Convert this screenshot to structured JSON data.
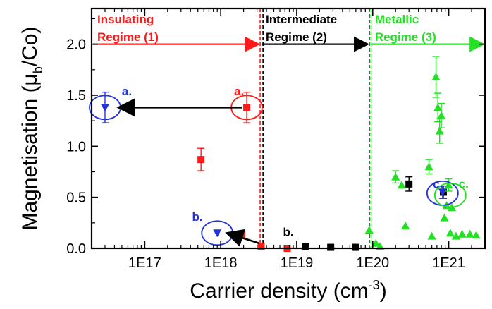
{
  "chart_data": {
    "type": "scatter",
    "title": "",
    "xlabel": "Carrier density (cm",
    "xlabel_sup": "-3",
    "xlabel_end": ")",
    "ylabel": "Magnetisation (μ",
    "ylabel_sub": "b",
    "ylabel_end": "/Co)",
    "xscale": "log",
    "xlim": [
      2e+16,
      3e+21
    ],
    "ylim": [
      0,
      2.35
    ],
    "x_ticks": [
      {
        "value": 1e+17,
        "label": "1E17"
      },
      {
        "value": 1e+18,
        "label": "1E18"
      },
      {
        "value": 1e+19,
        "label": "1E19"
      },
      {
        "value": 1e+20,
        "label": "1E20"
      },
      {
        "value": 1e+21,
        "label": "1E21"
      }
    ],
    "y_ticks": [
      {
        "value": 0.0,
        "label": "0.0"
      },
      {
        "value": 0.5,
        "label": "0.5"
      },
      {
        "value": 1.0,
        "label": "1.0"
      },
      {
        "value": 1.5,
        "label": "1.5"
      },
      {
        "value": 2.0,
        "label": "2.0"
      }
    ],
    "colors": {
      "insulating": "#ff1a1a",
      "intermediate": "#000000",
      "metallic": "#22e022",
      "annotation": "#2233dd"
    },
    "regimes": [
      {
        "label_line1": "Insulating",
        "label_line2": "Regime (1)",
        "x_start": 2e+16,
        "x_end": 3.3e+18,
        "y": 2.0,
        "color": "#ff1a1a"
      },
      {
        "label_line1": "Intermediate",
        "label_line2": "Regime (2)",
        "x_start": 3.3e+18,
        "x_end": 9e+19,
        "y": 2.0,
        "color": "#000000"
      },
      {
        "label_line1": "Metallic",
        "label_line2": "Regime (3)",
        "x_start": 9e+19,
        "x_end": 3e+21,
        "y": 2.0,
        "color": "#22e022"
      }
    ],
    "boundaries": [
      {
        "x": 3.3e+18,
        "color": "#ff1a1a"
      },
      {
        "x": 3.6e+18,
        "color": "#000000"
      },
      {
        "x": 9e+19,
        "color": "#000000"
      },
      {
        "x": 9.5e+19,
        "color": "#22e022"
      }
    ],
    "series": [
      {
        "color": "#ff1a1a",
        "marker": "square",
        "points": [
          {
            "x": 2.2e+18,
            "y": 1.38,
            "err": 0.15
          },
          {
            "x": 5.5e+17,
            "y": 0.87,
            "err": 0.11
          },
          {
            "x": 1.9e+18,
            "y": 0.13,
            "err": 0.0
          },
          {
            "x": 3.4e+18,
            "y": 0.02,
            "err": 0.0
          },
          {
            "x": 7.5e+18,
            "y": 0.0,
            "err": 0.0
          }
        ]
      },
      {
        "color": "#000000",
        "marker": "square",
        "points": [
          {
            "x": 1.3e+19,
            "y": 0.02,
            "err": 0.0
          },
          {
            "x": 2.8e+19,
            "y": 0.01,
            "err": 0.0
          },
          {
            "x": 6e+19,
            "y": 0.01,
            "err": 0.0
          },
          {
            "x": 3e+20,
            "y": 0.63,
            "err": 0.07
          },
          {
            "x": 8.5e+20,
            "y": 0.55,
            "err": 0.06
          }
        ]
      },
      {
        "color": "#22e022",
        "marker": "triangle",
        "points": [
          {
            "x": 9e+19,
            "y": 0.18,
            "err": 0.0
          },
          {
            "x": 1.1e+20,
            "y": 0.05,
            "err": 0.0
          },
          {
            "x": 1.25e+20,
            "y": 0.02,
            "err": 0.0
          },
          {
            "x": 2e+20,
            "y": 0.7,
            "err": 0.06
          },
          {
            "x": 2.4e+20,
            "y": 0.62,
            "err": 0.0
          },
          {
            "x": 2.7e+20,
            "y": 0.22,
            "err": 0.0
          },
          {
            "x": 5.5e+20,
            "y": 0.8,
            "err": 0.07
          },
          {
            "x": 6e+20,
            "y": 0.12,
            "err": 0.0
          },
          {
            "x": 6.8e+20,
            "y": 1.68,
            "err": 0.2
          },
          {
            "x": 7.2e+20,
            "y": 1.38,
            "err": 0.14
          },
          {
            "x": 7.6e+20,
            "y": 1.15,
            "err": 0.12
          },
          {
            "x": 8e+20,
            "y": 1.3,
            "err": 0.12
          },
          {
            "x": 8.8e+20,
            "y": 0.3,
            "err": 0.0
          },
          {
            "x": 9.4e+20,
            "y": 0.42,
            "err": 0.0
          },
          {
            "x": 1e+21,
            "y": 0.62,
            "err": 0.06
          },
          {
            "x": 1.05e+21,
            "y": 0.15,
            "err": 0.0
          },
          {
            "x": 1.1e+21,
            "y": 0.4,
            "err": 0.0
          },
          {
            "x": 1.25e+21,
            "y": 0.12,
            "err": 0.0
          },
          {
            "x": 1.5e+21,
            "y": 0.14,
            "err": 0.0
          },
          {
            "x": 1.9e+21,
            "y": 0.14,
            "err": 0.0
          },
          {
            "x": 2.3e+21,
            "y": 0.13,
            "err": 0.0
          }
        ]
      },
      {
        "color": "#2233dd",
        "marker": "down-triangle",
        "points": [
          {
            "x": 3e+16,
            "y": 1.38,
            "err": 0.15
          },
          {
            "x": 9e+17,
            "y": 0.15,
            "err": 0.0
          },
          {
            "x": 8.3e+20,
            "y": 0.55,
            "err": 0.06
          }
        ]
      }
    ],
    "circles": [
      {
        "x": 3e+16,
        "y": 1.38,
        "color": "#2233dd"
      },
      {
        "x": 2.2e+18,
        "y": 1.38,
        "color": "#ff1a1a"
      },
      {
        "x": 9e+17,
        "y": 0.15,
        "color": "#2233dd"
      },
      {
        "x": 8.3e+20,
        "y": 0.54,
        "color": "#2233dd"
      },
      {
        "x": 1.05e+21,
        "y": 0.52,
        "color": "#22e022"
      }
    ],
    "arrows": [
      {
        "from": [
          1.9e+18,
          1.38
        ],
        "to": [
          4.5e+16,
          1.38
        ]
      },
      {
        "from": [
          3.2e+18,
          0.05
        ],
        "to": [
          1.2e+18,
          0.15
        ]
      }
    ],
    "annotations": [
      {
        "text": "a.",
        "x": 5e+16,
        "y": 1.5,
        "color": "#2233dd"
      },
      {
        "text": "a.",
        "x": 1.5e+18,
        "y": 1.5,
        "color": "#ff1a1a"
      },
      {
        "text": "b.",
        "x": 4.2e+17,
        "y": 0.27,
        "color": "#2233dd"
      },
      {
        "text": "b.",
        "x": 6.6e+18,
        "y": 0.12,
        "color": "#000000"
      },
      {
        "text": "c.",
        "x": 6.2e+20,
        "y": 0.59,
        "color": "#2233dd"
      },
      {
        "text": "c.",
        "x": 1.35e+21,
        "y": 0.59,
        "color": "#22e022"
      }
    ]
  }
}
